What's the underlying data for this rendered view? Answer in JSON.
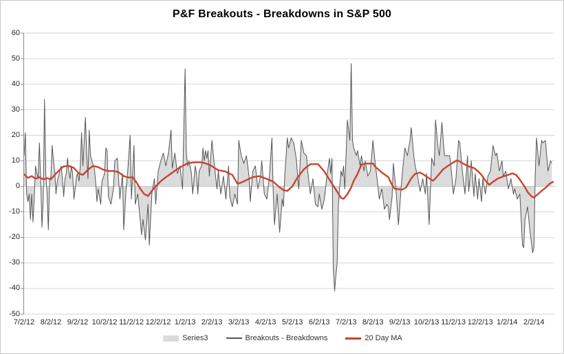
{
  "chart_data": {
    "type": "area+line",
    "title": "P&F Breakouts - Breakdowns in S&P 500",
    "grid": "horizontal",
    "legend_position": "bottom",
    "y_axis": {
      "min": -50,
      "max": 60,
      "step": 10
    },
    "x_axis": {
      "labels": [
        "7/2/12",
        "8/2/12",
        "9/2/12",
        "10/2/12",
        "11/2/12",
        "12/2/12",
        "1/2/13",
        "2/2/13",
        "3/2/13",
        "4/2/13",
        "5/2/13",
        "6/2/13",
        "7/2/13",
        "8/2/13",
        "9/2/13",
        "10/2/13",
        "11/2/13",
        "12/2/13",
        "1/2/14",
        "2/2/14"
      ],
      "days_per_label": 21,
      "total_days": 415
    },
    "colors": {
      "grid": "#d6d6d6",
      "zero_axis": "#b3b3b3",
      "y_axis": "#8a8a8a",
      "area_fill": "#dbdbdb",
      "data_line": "#545454",
      "ma_line": "#c7432f",
      "tick_text": "#262626",
      "border": "#c9c9c9"
    },
    "series": [
      {
        "name": "Series3",
        "type": "area",
        "color": "#dbdbdb",
        "data_ref": "daily"
      },
      {
        "name": "Breakouts - Breakdowns",
        "type": "line",
        "color": "#545454",
        "width": 1,
        "data_ref": "daily"
      },
      {
        "name": "20 Day MA",
        "type": "line",
        "color": "#c7432f",
        "width": 2.4,
        "data_ref": "ma20"
      }
    ],
    "daily": [
      [
        0,
        12
      ],
      [
        1,
        21
      ],
      [
        2,
        -3
      ],
      [
        3,
        -6
      ],
      [
        4,
        -3
      ],
      [
        5,
        -13
      ],
      [
        6,
        -3
      ],
      [
        7,
        -14
      ],
      [
        8,
        -4
      ],
      [
        9,
        8
      ],
      [
        10,
        5
      ],
      [
        11,
        3
      ],
      [
        12,
        17
      ],
      [
        13,
        2
      ],
      [
        14,
        -16
      ],
      [
        15,
        -5
      ],
      [
        16,
        34
      ],
      [
        17,
        5
      ],
      [
        18,
        -3
      ],
      [
        19,
        -17
      ],
      [
        20,
        2
      ],
      [
        21,
        4
      ],
      [
        22,
        16
      ],
      [
        23,
        10
      ],
      [
        24,
        6
      ],
      [
        25,
        -3
      ],
      [
        26,
        2
      ],
      [
        27,
        4
      ],
      [
        28,
        6
      ],
      [
        29,
        8
      ],
      [
        30,
        3
      ],
      [
        31,
        -4
      ],
      [
        32,
        3
      ],
      [
        33,
        5
      ],
      [
        34,
        11
      ],
      [
        35,
        6
      ],
      [
        36,
        3
      ],
      [
        37,
        8
      ],
      [
        38,
        5
      ],
      [
        39,
        -5
      ],
      [
        40,
        -1
      ],
      [
        41,
        4
      ],
      [
        42,
        5
      ],
      [
        43,
        2
      ],
      [
        44,
        8
      ],
      [
        45,
        21
      ],
      [
        46,
        8
      ],
      [
        48,
        27
      ],
      [
        49,
        13
      ],
      [
        50,
        3
      ],
      [
        51,
        22
      ],
      [
        52,
        12
      ],
      [
        53,
        10
      ],
      [
        55,
        7
      ],
      [
        56,
        2
      ],
      [
        57,
        -6
      ],
      [
        58,
        -1
      ],
      [
        60,
        -7
      ],
      [
        61,
        2
      ],
      [
        63,
        5
      ],
      [
        64,
        15
      ],
      [
        65,
        14
      ],
      [
        66,
        -4
      ],
      [
        68,
        -7
      ],
      [
        70,
        -1
      ],
      [
        71,
        10
      ],
      [
        73,
        11
      ],
      [
        75,
        -5
      ],
      [
        77,
        5
      ],
      [
        78,
        -17
      ],
      [
        80,
        0
      ],
      [
        81,
        5
      ],
      [
        83,
        20
      ],
      [
        84,
        -5
      ],
      [
        86,
        16
      ],
      [
        87,
        -7
      ],
      [
        89,
        -3
      ],
      [
        92,
        -19
      ],
      [
        93,
        -13
      ],
      [
        95,
        -21
      ],
      [
        97,
        -7
      ],
      [
        98,
        -23
      ],
      [
        100,
        -3
      ],
      [
        102,
        3
      ],
      [
        103,
        -7
      ],
      [
        105,
        6
      ],
      [
        107,
        10
      ],
      [
        109,
        13
      ],
      [
        111,
        8
      ],
      [
        113,
        13
      ],
      [
        115,
        22
      ],
      [
        116,
        7
      ],
      [
        118,
        13
      ],
      [
        120,
        5
      ],
      [
        122,
        8
      ],
      [
        124,
        -1
      ],
      [
        126,
        46
      ],
      [
        127,
        13
      ],
      [
        128,
        8
      ],
      [
        129,
        10
      ],
      [
        131,
        5
      ],
      [
        132,
        -3
      ],
      [
        133,
        3
      ],
      [
        134,
        8
      ],
      [
        135,
        5
      ],
      [
        136,
        -3
      ],
      [
        137,
        6
      ],
      [
        139,
        8
      ],
      [
        140,
        15
      ],
      [
        141,
        10
      ],
      [
        142,
        14
      ],
      [
        143,
        11
      ],
      [
        144,
        14
      ],
      [
        145,
        4
      ],
      [
        147,
        18
      ],
      [
        149,
        8
      ],
      [
        151,
        -1
      ],
      [
        152,
        6
      ],
      [
        154,
        -3
      ],
      [
        156,
        4
      ],
      [
        158,
        -5
      ],
      [
        160,
        8
      ],
      [
        161,
        -4
      ],
      [
        163,
        -8
      ],
      [
        165,
        -3
      ],
      [
        167,
        -7
      ],
      [
        168,
        18
      ],
      [
        170,
        12
      ],
      [
        172,
        9
      ],
      [
        174,
        12
      ],
      [
        176,
        4
      ],
      [
        177,
        -6
      ],
      [
        179,
        6
      ],
      [
        181,
        8
      ],
      [
        183,
        -1
      ],
      [
        185,
        4
      ],
      [
        186,
        10
      ],
      [
        188,
        -3
      ],
      [
        190,
        -5
      ],
      [
        192,
        4
      ],
      [
        194,
        19
      ],
      [
        195,
        -3
      ],
      [
        196,
        -15
      ],
      [
        198,
        -3
      ],
      [
        200,
        -18
      ],
      [
        202,
        -5
      ],
      [
        203,
        -8
      ],
      [
        204,
        4
      ],
      [
        206,
        19
      ],
      [
        207,
        15
      ],
      [
        209,
        19
      ],
      [
        211,
        17
      ],
      [
        213,
        11
      ],
      [
        215,
        -1
      ],
      [
        217,
        18
      ],
      [
        219,
        13
      ],
      [
        221,
        12
      ],
      [
        222,
        6
      ],
      [
        224,
        -3
      ],
      [
        226,
        3
      ],
      [
        228,
        -7
      ],
      [
        230,
        -8
      ],
      [
        231,
        -3
      ],
      [
        233,
        -9
      ],
      [
        235,
        -5
      ],
      [
        237,
        4
      ],
      [
        239,
        11
      ],
      [
        240,
        5
      ],
      [
        241,
        11
      ],
      [
        242,
        -32
      ],
      [
        243,
        -41
      ],
      [
        244,
        -35
      ],
      [
        245,
        -30
      ],
      [
        246,
        -7
      ],
      [
        248,
        6
      ],
      [
        249,
        4
      ],
      [
        250,
        8
      ],
      [
        251,
        -1
      ],
      [
        253,
        26
      ],
      [
        255,
        18
      ],
      [
        256,
        48
      ],
      [
        257,
        18
      ],
      [
        258,
        15
      ],
      [
        260,
        12
      ],
      [
        261,
        14
      ],
      [
        263,
        8
      ],
      [
        264,
        12
      ],
      [
        266,
        6
      ],
      [
        267,
        10
      ],
      [
        269,
        4
      ],
      [
        271,
        6
      ],
      [
        273,
        18
      ],
      [
        275,
        8
      ],
      [
        276,
        4
      ],
      [
        278,
        -5
      ],
      [
        280,
        -1
      ],
      [
        282,
        -9
      ],
      [
        284,
        -7
      ],
      [
        285,
        -8
      ],
      [
        286,
        -13
      ],
      [
        288,
        -4
      ],
      [
        289,
        9
      ],
      [
        291,
        -1
      ],
      [
        293,
        -15
      ],
      [
        295,
        -1
      ],
      [
        296,
        5
      ],
      [
        298,
        15
      ],
      [
        300,
        12
      ],
      [
        302,
        18
      ],
      [
        303,
        23
      ],
      [
        305,
        12
      ],
      [
        306,
        8
      ],
      [
        308,
        4
      ],
      [
        310,
        -2
      ],
      [
        312,
        3
      ],
      [
        314,
        -3
      ],
      [
        315,
        5
      ],
      [
        317,
        -15
      ],
      [
        319,
        11
      ],
      [
        321,
        8
      ],
      [
        322,
        26
      ],
      [
        324,
        15
      ],
      [
        325,
        12
      ],
      [
        327,
        25
      ],
      [
        329,
        12
      ],
      [
        331,
        12
      ],
      [
        333,
        12
      ],
      [
        334,
        8
      ],
      [
        336,
        -3
      ],
      [
        338,
        3
      ],
      [
        340,
        18
      ],
      [
        341,
        17
      ],
      [
        343,
        6
      ],
      [
        345,
        -3
      ],
      [
        347,
        12
      ],
      [
        348,
        -2
      ],
      [
        350,
        10
      ],
      [
        352,
        -4
      ],
      [
        353,
        5
      ],
      [
        355,
        -5
      ],
      [
        356,
        3
      ],
      [
        358,
        -6
      ],
      [
        359,
        3
      ],
      [
        361,
        -3
      ],
      [
        363,
        4
      ],
      [
        365,
        6
      ],
      [
        367,
        16
      ],
      [
        369,
        12
      ],
      [
        370,
        13
      ],
      [
        372,
        6
      ],
      [
        374,
        10
      ],
      [
        375,
        4
      ],
      [
        377,
        6
      ],
      [
        379,
        -1
      ],
      [
        381,
        3
      ],
      [
        383,
        -3
      ],
      [
        384,
        -1
      ],
      [
        386,
        -5
      ],
      [
        388,
        -3
      ],
      [
        390,
        -23
      ],
      [
        391,
        -24
      ],
      [
        392,
        -13
      ],
      [
        394,
        -8
      ],
      [
        396,
        -18
      ],
      [
        398,
        -26
      ],
      [
        399,
        -24
      ],
      [
        400,
        4
      ],
      [
        401,
        19
      ],
      [
        403,
        8
      ],
      [
        405,
        18
      ],
      [
        406,
        17
      ],
      [
        408,
        18
      ],
      [
        410,
        6
      ],
      [
        412,
        10
      ],
      [
        413,
        9
      ]
    ],
    "ma20": [
      [
        0,
        4.7
      ],
      [
        3,
        3.3
      ],
      [
        6,
        4
      ],
      [
        9,
        3
      ],
      [
        12,
        3.6
      ],
      [
        15,
        2.7
      ],
      [
        18,
        3.2
      ],
      [
        21,
        2.8
      ],
      [
        24,
        4.5
      ],
      [
        28,
        6.5
      ],
      [
        31,
        7.8
      ],
      [
        35,
        8
      ],
      [
        39,
        7.2
      ],
      [
        43,
        5
      ],
      [
        46,
        4.5
      ],
      [
        50,
        6.5
      ],
      [
        54,
        8
      ],
      [
        58,
        7.5
      ],
      [
        62,
        6.5
      ],
      [
        66,
        6
      ],
      [
        70,
        6
      ],
      [
        74,
        5.5
      ],
      [
        78,
        4
      ],
      [
        82,
        3.4
      ],
      [
        85,
        3.6
      ],
      [
        88,
        1.5
      ],
      [
        91,
        -1
      ],
      [
        94,
        -3
      ],
      [
        97,
        -3.8
      ],
      [
        100,
        -1.8
      ],
      [
        103,
        0
      ],
      [
        107,
        2
      ],
      [
        111,
        3.6
      ],
      [
        115,
        5
      ],
      [
        120,
        6.8
      ],
      [
        124,
        8
      ],
      [
        128,
        9
      ],
      [
        133,
        9.4
      ],
      [
        139,
        9.4
      ],
      [
        142,
        9
      ],
      [
        146,
        8.2
      ],
      [
        152,
        6.3
      ],
      [
        157,
        5.9
      ],
      [
        163,
        4.5
      ],
      [
        167,
        1
      ],
      [
        170,
        1.5
      ],
      [
        173,
        2.2
      ],
      [
        179,
        3.6
      ],
      [
        184,
        4
      ],
      [
        189,
        3.1
      ],
      [
        195,
        1.8
      ],
      [
        200,
        -0.4
      ],
      [
        203,
        -1.5
      ],
      [
        206,
        -1.8
      ],
      [
        210,
        0
      ],
      [
        214,
        3.5
      ],
      [
        219,
        6.7
      ],
      [
        224,
        8.7
      ],
      [
        230,
        8.7
      ],
      [
        235,
        5.8
      ],
      [
        240,
        1.8
      ],
      [
        244,
        -1.3
      ],
      [
        248,
        -4.5
      ],
      [
        250,
        -4.9
      ],
      [
        253,
        -3.1
      ],
      [
        256,
        -0.4
      ],
      [
        258,
        2.2
      ],
      [
        261,
        4.9
      ],
      [
        264,
        8.5
      ],
      [
        267,
        8.9
      ],
      [
        273,
        8.9
      ],
      [
        275,
        7.6
      ],
      [
        280,
        5.4
      ],
      [
        285,
        3.6
      ],
      [
        288,
        0.5
      ],
      [
        290,
        -0.9
      ],
      [
        296,
        -1.3
      ],
      [
        299,
        -0.4
      ],
      [
        303,
        3.1
      ],
      [
        306,
        4.9
      ],
      [
        310,
        5.4
      ],
      [
        313,
        4.5
      ],
      [
        317,
        3.1
      ],
      [
        320,
        2.2
      ],
      [
        322,
        3.1
      ],
      [
        325,
        4.9
      ],
      [
        328,
        6.7
      ],
      [
        332,
        8.1
      ],
      [
        336,
        9.4
      ],
      [
        339,
        10.2
      ],
      [
        342,
        9.4
      ],
      [
        345,
        8.5
      ],
      [
        349,
        7.6
      ],
      [
        352,
        7.2
      ],
      [
        355,
        6
      ],
      [
        358,
        4.5
      ],
      [
        361,
        2.2
      ],
      [
        364,
        0.6
      ],
      [
        367,
        1.8
      ],
      [
        371,
        3.1
      ],
      [
        375,
        3.9
      ],
      [
        379,
        4.5
      ],
      [
        382,
        5.1
      ],
      [
        385,
        4.5
      ],
      [
        387,
        3.3
      ],
      [
        390,
        1.1
      ],
      [
        392,
        -0.4
      ],
      [
        394,
        -2.2
      ],
      [
        397,
        -3.9
      ],
      [
        399,
        -4.4
      ],
      [
        402,
        -3.1
      ],
      [
        405,
        -1.8
      ],
      [
        408,
        -0.6
      ],
      [
        411,
        0.9
      ],
      [
        414,
        1.8
      ]
    ]
  }
}
